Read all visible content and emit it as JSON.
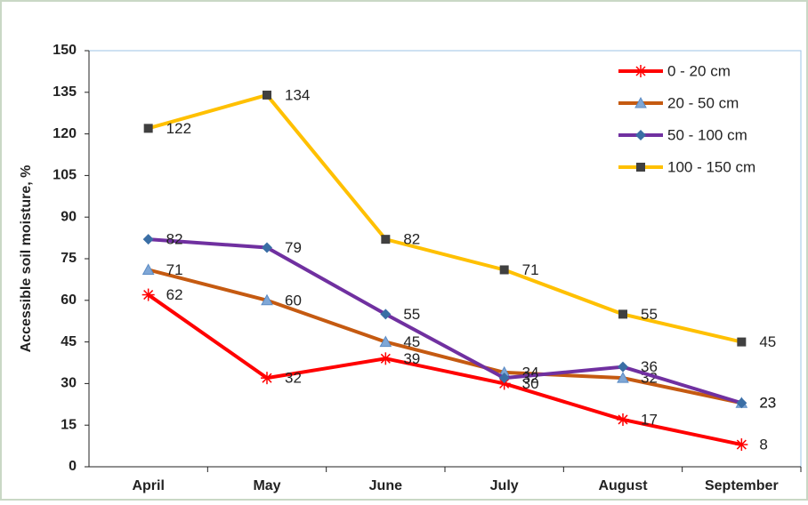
{
  "chart_data": {
    "type": "line",
    "y_label": "Accessible soil moisture, %",
    "categories": [
      "April",
      "May",
      "June",
      "July",
      "August",
      "September"
    ],
    "series": [
      {
        "name": "0 - 20 cm",
        "color": "#ff0000",
        "marker": "asterisk",
        "values": [
          62,
          32,
          39,
          30,
          17,
          8
        ]
      },
      {
        "name": "20 - 50 cm",
        "color": "#c55a11",
        "marker": "triangle",
        "values": [
          71,
          60,
          45,
          34,
          32,
          23
        ]
      },
      {
        "name": "50 - 100 cm",
        "color": "#7030a0",
        "marker": "diamond",
        "values": [
          82,
          79,
          55,
          32,
          36,
          23
        ]
      },
      {
        "name": "100 - 150 cm",
        "color": "#ffc000",
        "marker": "square",
        "values": [
          122,
          134,
          82,
          71,
          55,
          45
        ]
      }
    ],
    "ylim": [
      0,
      150
    ],
    "yticks": [
      0,
      15,
      30,
      45,
      60,
      75,
      90,
      105,
      120,
      135,
      150
    ],
    "legend": "top-right",
    "grid": false
  }
}
